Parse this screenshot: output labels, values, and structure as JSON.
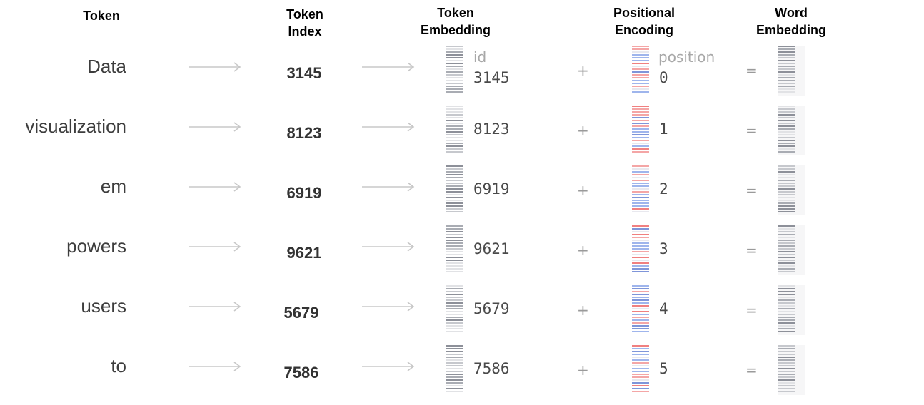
{
  "headers": {
    "token": "Token",
    "token_index": "Token\nIndex",
    "token_embedding": "Token\nEmbedding",
    "positional_encoding": "Positional\nEncoding",
    "word_embedding": "Word\nEmbedding"
  },
  "labels": {
    "id": "id",
    "position": "position"
  },
  "operators": {
    "plus": "+",
    "equals": "="
  },
  "colors": {
    "gray_vector": "#9a9ca3",
    "red_encoding": "#f08a8a",
    "blue_encoding": "#8fa8e8",
    "arrow": "#c8c8c8"
  },
  "rows": [
    {
      "token": "Data",
      "index": "3145",
      "embedding_id": "3145",
      "position": "0"
    },
    {
      "token": "visualization",
      "index": "8123",
      "embedding_id": "8123",
      "position": "1"
    },
    {
      "token": "em",
      "index": "6919",
      "embedding_id": "6919",
      "position": "2"
    },
    {
      "token": "powers",
      "index": "9621",
      "embedding_id": "9621",
      "position": "3"
    },
    {
      "token": "users",
      "index": "5679",
      "embedding_id": "5679",
      "position": "4"
    },
    {
      "token": "to",
      "index": "7586",
      "embedding_id": "7586",
      "position": "5"
    }
  ]
}
